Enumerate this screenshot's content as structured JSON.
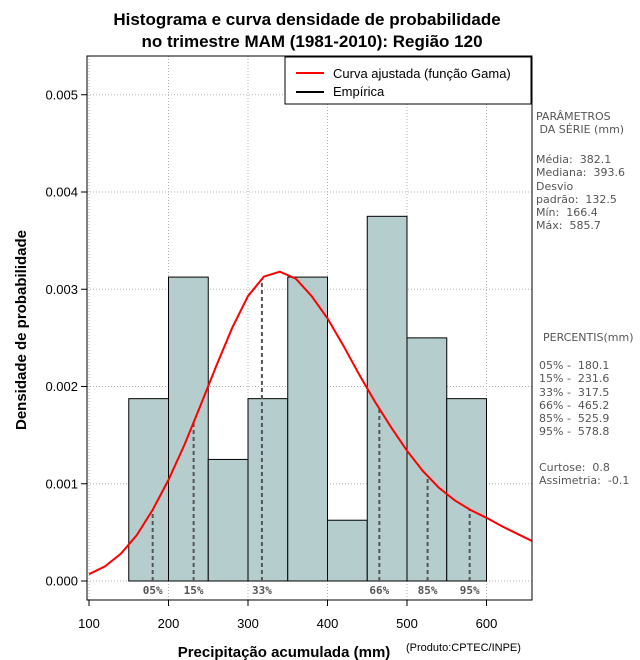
{
  "chart_data": {
    "type": "bar",
    "title": [
      "Histograma e curva densidade de probabilidade",
      "no trimestre MAM (1981-2010): Região 120"
    ],
    "xlabel": "Precipitação acumulada (mm)",
    "ylabel": "Densidade de probabilidade",
    "credit": "(Produto:CPTEC/INPE)",
    "xlim": [
      100,
      660
    ],
    "ylim": [
      0,
      0.0053
    ],
    "x_ticks": [
      100,
      200,
      300,
      400,
      500,
      600
    ],
    "x_tick_labels": [
      "100",
      "200",
      "300",
      "400",
      "500",
      "600"
    ],
    "y_ticks": [
      0,
      0.001,
      0.002,
      0.003,
      0.004,
      0.005
    ],
    "y_tick_labels": [
      "0.000",
      "0.001",
      "0.002",
      "0.003",
      "0.004",
      "0.005"
    ],
    "grid": true,
    "bins": [
      {
        "start": 150,
        "end": 200,
        "density": 0.001875
      },
      {
        "start": 200,
        "end": 250,
        "density": 0.003125
      },
      {
        "start": 250,
        "end": 300,
        "density": 0.00125
      },
      {
        "start": 300,
        "end": 350,
        "density": 0.001875
      },
      {
        "start": 350,
        "end": 400,
        "density": 0.003125
      },
      {
        "start": 400,
        "end": 450,
        "density": 0.000625
      },
      {
        "start": 450,
        "end": 500,
        "density": 0.00375
      },
      {
        "start": 500,
        "end": 550,
        "density": 0.0025
      },
      {
        "start": 550,
        "end": 600,
        "density": 0.001875
      }
    ],
    "gamma_curve": {
      "name": "Curva ajustada (função Gama)",
      "color": "#ff0000",
      "x": [
        100,
        120,
        140,
        160,
        180,
        200,
        220,
        240,
        260,
        280,
        300,
        320,
        340,
        360,
        380,
        400,
        420,
        440,
        460,
        480,
        500,
        520,
        540,
        560,
        580,
        600,
        620,
        640,
        660
      ],
      "y": [
        7e-05,
        0.00015,
        0.00028,
        0.00047,
        0.00073,
        0.00104,
        0.0014,
        0.0018,
        0.00221,
        0.0026,
        0.00293,
        0.00313,
        0.00318,
        0.00311,
        0.00293,
        0.0027,
        0.00242,
        0.00212,
        0.00184,
        0.00158,
        0.00134,
        0.00113,
        0.00096,
        0.00083,
        0.00073,
        0.00065,
        0.00056,
        0.00048,
        0.0004
      ]
    },
    "percentile_lines": [
      {
        "label": "05%",
        "x": 180.1
      },
      {
        "label": "15%",
        "x": 231.6
      },
      {
        "label": "33%",
        "x": 317.5
      },
      {
        "label": "66%",
        "x": 465.2
      },
      {
        "label": "85%",
        "x": 525.9
      },
      {
        "label": "95%",
        "x": 578.8
      }
    ],
    "legend": {
      "position": "top-right",
      "entries": [
        {
          "label": "Curva ajustada (função Gama)",
          "color": "#ff0000"
        },
        {
          "label": "Empírica",
          "color": "#000000"
        }
      ]
    },
    "colors": {
      "bar_fill": "#b5cdcc",
      "bar_edge": "#000000",
      "curve": "#ff0000",
      "percentile": "#555555"
    }
  },
  "side_panel": {
    "params_title": "PARÂMETROS\n DA SÉRIE (mm)",
    "params_lines": "Média:  382.1\nMediana:  393.6\nDesvio\npadrão:  132.5\nMín:  166.4\nMáx:  585.7",
    "percentis_title": "PERCENTIS(mm)",
    "percentis_lines": "05% -  180.1\n15% -  231.6\n33% -  317.5\n66% -  465.2\n85% -  525.9\n95% -  578.8",
    "shape_lines": "Curtose:  0.8\nAssimetria:  -0.1"
  }
}
